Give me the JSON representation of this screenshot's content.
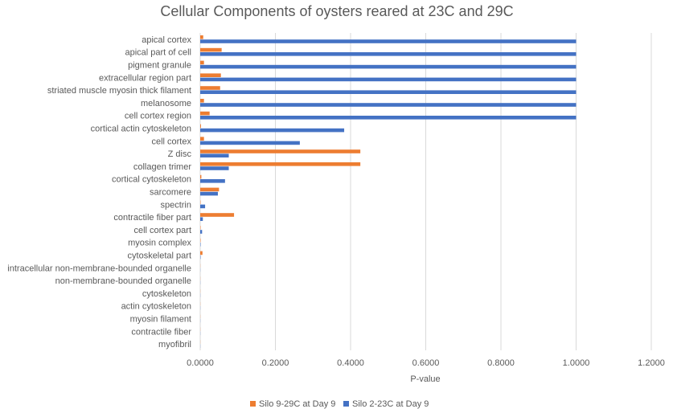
{
  "chart_data": {
    "type": "bar",
    "orientation": "horizontal",
    "title": "Cellular Components of oysters reared at 23C and 29C",
    "xlabel": "P-value",
    "ylabel": "",
    "xlim": [
      0,
      1.2
    ],
    "ticks": [
      "0.0000",
      "0.2000",
      "0.4000",
      "0.6000",
      "0.8000",
      "1.0000",
      "1.2000"
    ],
    "tick_values": [
      0,
      0.2,
      0.4,
      0.6,
      0.8,
      1.0,
      1.2
    ],
    "grid": true,
    "legend_position": "bottom",
    "categories": [
      "apical cortex",
      "apical part of cell",
      "pigment granule",
      "extracellular region part",
      "striated muscle myosin thick filament",
      "melanosome",
      "cell cortex region",
      "cortical actin cytoskeleton",
      "cell cortex",
      "Z disc",
      "collagen trimer",
      "cortical cytoskeleton",
      "sarcomere",
      "spectrin",
      "contractile fiber part",
      "cell cortex part",
      "myosin complex",
      "cytoskeletal part",
      "intracellular non-membrane-bounded organelle",
      "non-membrane-bounded organelle",
      "cytoskeleton",
      "actin cytoskeleton",
      "myosin filament",
      "contractile fiber",
      "myofibril"
    ],
    "series": [
      {
        "name": "Silo 9-29C at Day 9",
        "color": "#ed7d31",
        "values": [
          0.008,
          0.057,
          0.01,
          0.055,
          0.053,
          0.01,
          0.025,
          0.002,
          0.01,
          0.426,
          0.426,
          0.003,
          0.05,
          0.001,
          0.09,
          0.001,
          0.001,
          0.006,
          0.0003,
          0.0003,
          0.0003,
          0.0003,
          0.0003,
          0.0003,
          0.0003
        ]
      },
      {
        "name": "Silo 2-23C at Day 9",
        "color": "#4472c4",
        "values": [
          1.0,
          1.0,
          1.0,
          1.0,
          1.0,
          1.0,
          1.0,
          0.383,
          0.265,
          0.076,
          0.076,
          0.066,
          0.047,
          0.013,
          0.007,
          0.005,
          0.001,
          0.001,
          0.0003,
          0.0003,
          0.0003,
          0.0003,
          0.0003,
          0.0003,
          0.0003
        ]
      }
    ]
  }
}
